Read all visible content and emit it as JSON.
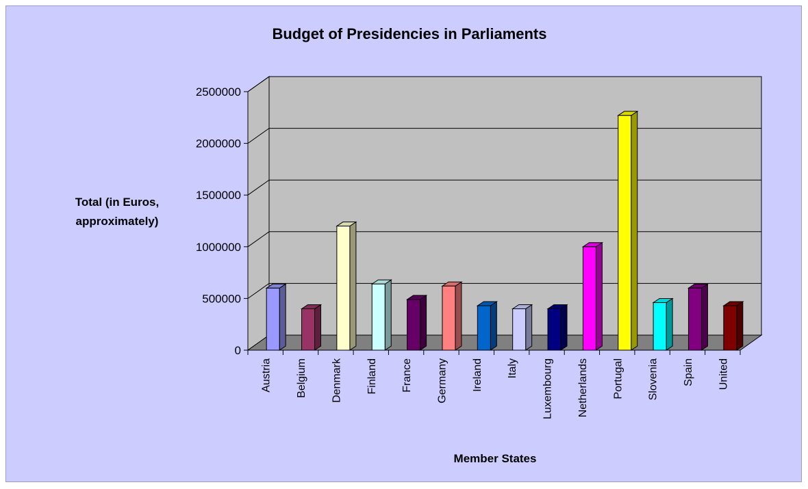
{
  "chart_data": {
    "type": "bar",
    "title": "Budget of Presidencies in Parliaments",
    "xlabel": "Member States",
    "ylabel_lines": [
      "Total (in Euros,",
      "approximately)"
    ],
    "ylim": [
      0,
      2500000
    ],
    "yticks": [
      "0",
      "500000",
      "1000000",
      "1500000",
      "2000000",
      "2500000"
    ],
    "grid": true,
    "categories": [
      "Austria",
      "Belgium",
      "Denmark",
      "Finland",
      "France",
      "Germany",
      "Ireland",
      "Italy",
      "Luxembourg",
      "Netherlands",
      "Portugal",
      "Slovenia",
      "Spain",
      "United"
    ],
    "values": [
      600000,
      400000,
      1200000,
      640000,
      490000,
      620000,
      430000,
      400000,
      400000,
      1000000,
      2270000,
      460000,
      600000,
      430000
    ],
    "colors": [
      "#9999ff",
      "#993366",
      "#ffffcc",
      "#ccffff",
      "#660066",
      "#ff8080",
      "#0066cc",
      "#ccccff",
      "#000080",
      "#ff00ff",
      "#ffff00",
      "#00ffff",
      "#800080",
      "#800000"
    ],
    "wall_color": "#c0c0c0",
    "floor_color": "#808080"
  }
}
